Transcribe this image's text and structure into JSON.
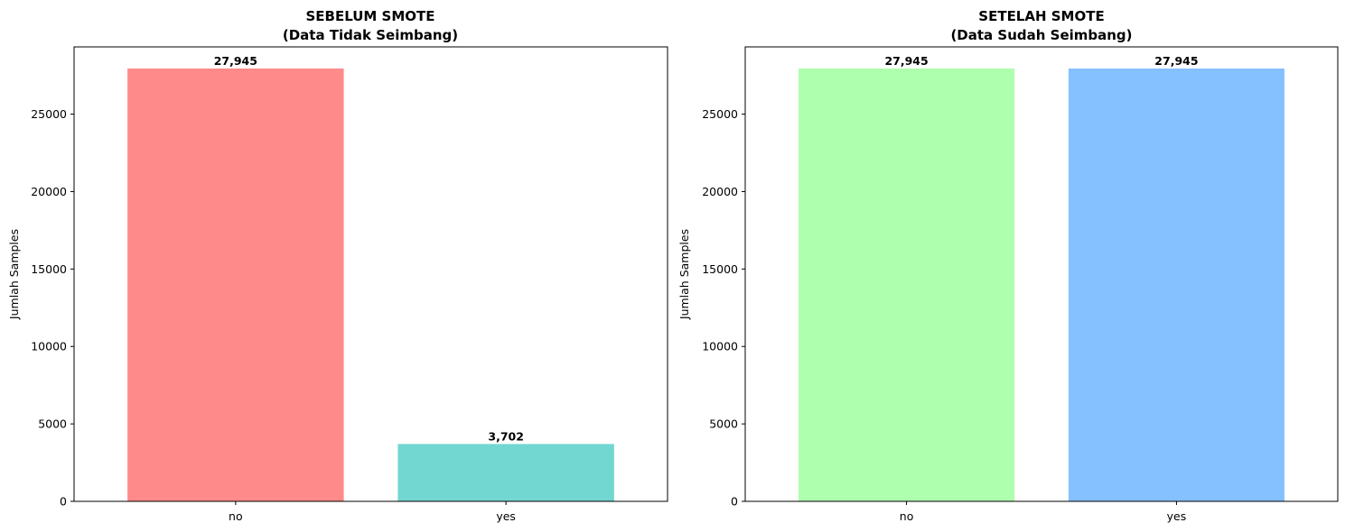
{
  "chart_data": [
    {
      "type": "bar",
      "title": [
        "SEBELUM SMOTE",
        "(Data Tidak Seimbang)"
      ],
      "ylabel": "Jumlah Samples",
      "xlabel": "",
      "categories": [
        "no",
        "yes"
      ],
      "values": [
        27945,
        3702
      ],
      "value_labels": [
        "27,945",
        "3,702"
      ],
      "colors": [
        "#ff8a8a",
        "#72d6d1"
      ],
      "ylim": [
        0,
        29342
      ],
      "yticks": [
        0,
        5000,
        10000,
        15000,
        20000,
        25000
      ],
      "grid": false
    },
    {
      "type": "bar",
      "title": [
        "SETELAH SMOTE",
        "(Data Sudah Seimbang)"
      ],
      "ylabel": "Jumlah Samples",
      "xlabel": "",
      "categories": [
        "no",
        "yes"
      ],
      "values": [
        27945,
        27945
      ],
      "value_labels": [
        "27,945",
        "27,945"
      ],
      "colors": [
        "#aeffae",
        "#85c1ff"
      ],
      "ylim": [
        0,
        29342
      ],
      "yticks": [
        0,
        5000,
        10000,
        15000,
        20000,
        25000
      ],
      "grid": false
    }
  ]
}
